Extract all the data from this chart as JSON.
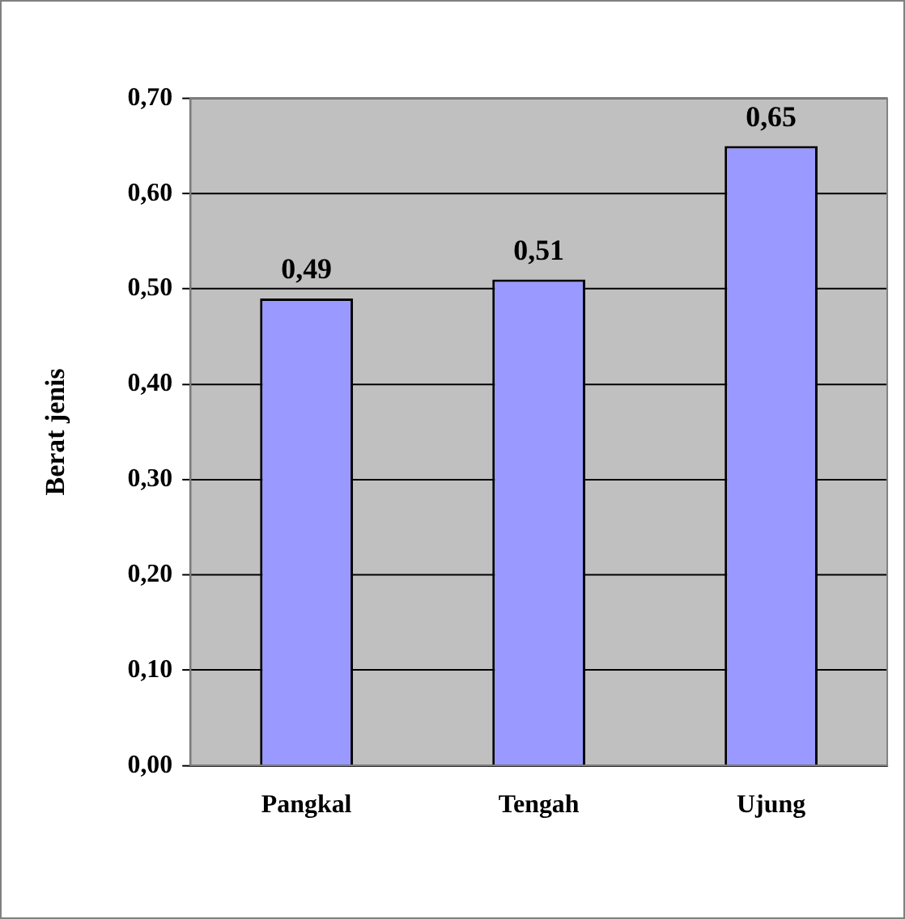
{
  "chart_data": {
    "type": "bar",
    "ylabel": "Berat jenis",
    "categories": [
      "Pangkal",
      "Tengah",
      "Ujung"
    ],
    "values": [
      0.49,
      0.51,
      0.65
    ],
    "value_labels": [
      "0,49",
      "0,51",
      "0,65"
    ],
    "color": "#9999ff",
    "ylim": [
      0,
      0.7
    ],
    "yticks": [
      {
        "value": 0,
        "label": "0,00"
      },
      {
        "value": 0.1,
        "label": "0,10"
      },
      {
        "value": 0.2,
        "label": "0,20"
      },
      {
        "value": 0.3,
        "label": "0,30"
      },
      {
        "value": 0.4,
        "label": "0,40"
      },
      {
        "value": 0.5,
        "label": "0,50"
      },
      {
        "value": 0.6,
        "label": "0,60"
      },
      {
        "value": 0.7,
        "label": "0,70"
      }
    ],
    "grid": "y",
    "legend": false
  }
}
